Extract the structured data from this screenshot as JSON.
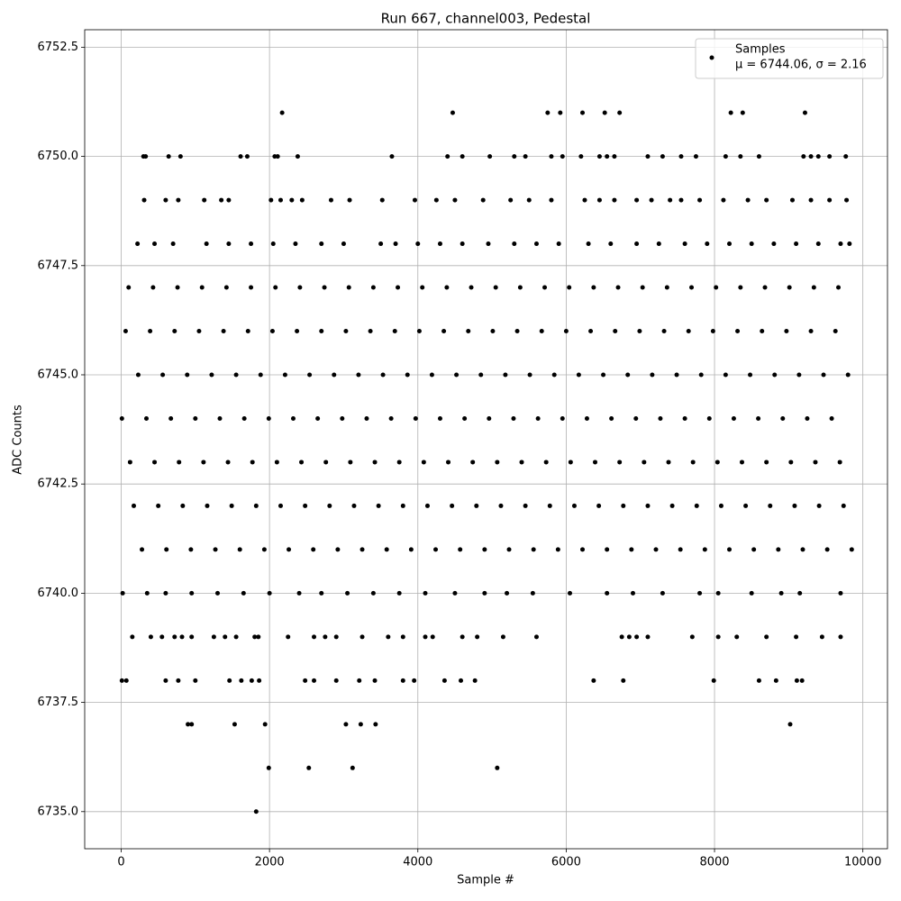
{
  "chart_data": {
    "type": "scatter",
    "title": "Run 667, channel003, Pedestal",
    "xlabel": "Sample #",
    "ylabel": "ADC Counts",
    "xlim": [
      -492,
      10332
    ],
    "ylim": [
      6734.15,
      6752.9
    ],
    "xticks": [
      0,
      2000,
      4000,
      6000,
      8000,
      10000
    ],
    "yticks": [
      {
        "value": 6735,
        "label": "6735.0"
      },
      6737.5,
      {
        "value": 6740,
        "label": "6740.0"
      },
      6742.5,
      {
        "value": 6745,
        "label": "6745.0"
      },
      6747.5,
      {
        "value": 6750,
        "label": "6750.0"
      },
      6752.5
    ],
    "grid": true,
    "legend": "upper right",
    "legend_note": "μ = 6744.06, σ = 2.16",
    "x": [
      10,
      340,
      670,
      1000,
      1330,
      1660,
      1990,
      2320,
      2650,
      2980,
      3310,
      3640,
      3970,
      4300,
      4630,
      4960,
      5290,
      5620,
      5950,
      6280,
      6610,
      6940,
      7270,
      7600,
      7930,
      8260,
      8590,
      8920,
      9250,
      9580,
      120,
      450,
      780,
      1110,
      1440,
      1770,
      2100,
      2430,
      2760,
      3090,
      3420,
      3750,
      4080,
      4410,
      4740,
      5070,
      5400,
      5730,
      6060,
      6390,
      6720,
      7050,
      7380,
      7710,
      8040,
      8370,
      8700,
      9030,
      9360,
      9690,
      230,
      560,
      890,
      1220,
      1550,
      1880,
      2210,
      2540,
      2870,
      3200,
      3530,
      3860,
      4190,
      4520,
      4850,
      5180,
      5510,
      5840,
      6170,
      6500,
      6830,
      7160,
      7490,
      7820,
      8150,
      8480,
      8810,
      9140,
      9470,
      9800,
      60,
      390,
      720,
      1050,
      1380,
      1710,
      2040,
      2370,
      2700,
      3030,
      3360,
      3690,
      4020,
      4350,
      4680,
      5010,
      5340,
      5670,
      6000,
      6330,
      6660,
      6990,
      7320,
      7650,
      7980,
      8310,
      8640,
      8970,
      9300,
      9630,
      170,
      500,
      830,
      1160,
      1490,
      1820,
      2150,
      2480,
      2810,
      3140,
      3470,
      3800,
      4130,
      4460,
      4790,
      5120,
      5450,
      5780,
      6110,
      6440,
      6770,
      7100,
      7430,
      7760,
      8090,
      8420,
      8750,
      9080,
      9410,
      9740,
      280,
      610,
      940,
      1270,
      1600,
      1930,
      2260,
      2590,
      2920,
      3250,
      3580,
      3910,
      4240,
      4570,
      4900,
      5230,
      5560,
      5890,
      6220,
      6550,
      6880,
      7210,
      7540,
      7870,
      8200,
      8530,
      8860,
      9190,
      9520,
      9850,
      100,
      430,
      760,
      1090,
      1420,
      1750,
      2080,
      2410,
      2740,
      3070,
      3400,
      3730,
      4060,
      4390,
      4720,
      5050,
      5380,
      5710,
      6040,
      6370,
      6700,
      7030,
      7360,
      7690,
      8020,
      8350,
      8680,
      9010,
      9340,
      9670,
      20,
      350,
      600,
      950,
      1300,
      1650,
      2000,
      2400,
      2700,
      3050,
      3400,
      3750,
      4100,
      4500,
      4900,
      5200,
      5550,
      6050,
      6550,
      6900,
      7300,
      7800,
      8050,
      8500,
      8900,
      9150,
      9700,
      220,
      450,
      700,
      1150,
      1450,
      1750,
      2050,
      2350,
      2700,
      3000,
      3500,
      3700,
      4000,
      4300,
      4600,
      4950,
      5300,
      5600,
      5900,
      6300,
      6600,
      6950,
      7250,
      7600,
      7900,
      8200,
      8500,
      8800,
      9100,
      9400,
      9700,
      9820,
      310,
      600,
      770,
      1120,
      1350,
      1450,
      2020,
      2150,
      2300,
      2440,
      2830,
      3080,
      3520,
      3960,
      4250,
      4500,
      4880,
      5250,
      5500,
      5800,
      6250,
      6450,
      6650,
      6950,
      7150,
      7400,
      7550,
      7800,
      8120,
      8450,
      8700,
      9050,
      9300,
      9550,
      9780,
      300,
      330,
      640,
      800,
      1610,
      1700,
      2070,
      2110,
      2380,
      3650,
      4400,
      4600,
      4970,
      5300,
      5450,
      5800,
      5950,
      6200,
      6450,
      6550,
      6650,
      7100,
      7300,
      7550,
      7750,
      8150,
      8350,
      8600,
      9200,
      9300,
      9400,
      9550,
      9770,
      2170,
      4470,
      5750,
      5920,
      6220,
      6520,
      6720,
      8220,
      8380,
      9220,
      150,
      400,
      550,
      720,
      820,
      950,
      1250,
      1400,
      1550,
      1800,
      1850,
      2250,
      2600,
      2750,
      2900,
      3250,
      3600,
      3800,
      4100,
      4200,
      4600,
      4800,
      5150,
      5600,
      6750,
      6850,
      6950,
      7100,
      7700,
      8050,
      8300,
      8700,
      9100,
      9450,
      9700,
      10,
      70,
      600,
      770,
      1000,
      1460,
      1620,
      1760,
      1860,
      2480,
      2600,
      2900,
      3210,
      3420,
      3800,
      3950,
      4360,
      4580,
      4770,
      6370,
      6770,
      7990,
      8600,
      8830,
      9110,
      9180,
      900,
      950,
      1530,
      1940,
      3030,
      3230,
      3430,
      9020,
      1990,
      2530,
      3120,
      5070,
      1820
    ],
    "series": [
      {
        "name": "Samples",
        "color": "#000000",
        "values": [
          6744,
          6744,
          6744,
          6744,
          6744,
          6744,
          6744,
          6744,
          6744,
          6744,
          6744,
          6744,
          6744,
          6744,
          6744,
          6744,
          6744,
          6744,
          6744,
          6744,
          6744,
          6744,
          6744,
          6744,
          6744,
          6744,
          6744,
          6744,
          6744,
          6744,
          6743,
          6743,
          6743,
          6743,
          6743,
          6743,
          6743,
          6743,
          6743,
          6743,
          6743,
          6743,
          6743,
          6743,
          6743,
          6743,
          6743,
          6743,
          6743,
          6743,
          6743,
          6743,
          6743,
          6743,
          6743,
          6743,
          6743,
          6743,
          6743,
          6743,
          6745,
          6745,
          6745,
          6745,
          6745,
          6745,
          6745,
          6745,
          6745,
          6745,
          6745,
          6745,
          6745,
          6745,
          6745,
          6745,
          6745,
          6745,
          6745,
          6745,
          6745,
          6745,
          6745,
          6745,
          6745,
          6745,
          6745,
          6745,
          6745,
          6745,
          6746,
          6746,
          6746,
          6746,
          6746,
          6746,
          6746,
          6746,
          6746,
          6746,
          6746,
          6746,
          6746,
          6746,
          6746,
          6746,
          6746,
          6746,
          6746,
          6746,
          6746,
          6746,
          6746,
          6746,
          6746,
          6746,
          6746,
          6746,
          6746,
          6746,
          6742,
          6742,
          6742,
          6742,
          6742,
          6742,
          6742,
          6742,
          6742,
          6742,
          6742,
          6742,
          6742,
          6742,
          6742,
          6742,
          6742,
          6742,
          6742,
          6742,
          6742,
          6742,
          6742,
          6742,
          6742,
          6742,
          6742,
          6742,
          6742,
          6742,
          6741,
          6741,
          6741,
          6741,
          6741,
          6741,
          6741,
          6741,
          6741,
          6741,
          6741,
          6741,
          6741,
          6741,
          6741,
          6741,
          6741,
          6741,
          6741,
          6741,
          6741,
          6741,
          6741,
          6741,
          6741,
          6741,
          6741,
          6741,
          6741,
          6741,
          6747,
          6747,
          6747,
          6747,
          6747,
          6747,
          6747,
          6747,
          6747,
          6747,
          6747,
          6747,
          6747,
          6747,
          6747,
          6747,
          6747,
          6747,
          6747,
          6747,
          6747,
          6747,
          6747,
          6747,
          6747,
          6747,
          6747,
          6747,
          6747,
          6747,
          6740,
          6740,
          6740,
          6740,
          6740,
          6740,
          6740,
          6740,
          6740,
          6740,
          6740,
          6740,
          6740,
          6740,
          6740,
          6740,
          6740,
          6740,
          6740,
          6740,
          6740,
          6740,
          6740,
          6740,
          6740,
          6740,
          6740,
          6748,
          6748,
          6748,
          6748,
          6748,
          6748,
          6748,
          6748,
          6748,
          6748,
          6748,
          6748,
          6748,
          6748,
          6748,
          6748,
          6748,
          6748,
          6748,
          6748,
          6748,
          6748,
          6748,
          6748,
          6748,
          6748,
          6748,
          6748,
          6748,
          6748,
          6748,
          6748,
          6749,
          6749,
          6749,
          6749,
          6749,
          6749,
          6749,
          6749,
          6749,
          6749,
          6749,
          6749,
          6749,
          6749,
          6749,
          6749,
          6749,
          6749,
          6749,
          6749,
          6749,
          6749,
          6749,
          6749,
          6749,
          6749,
          6749,
          6749,
          6749,
          6749,
          6749,
          6749,
          6749,
          6749,
          6749,
          6750,
          6750,
          6750,
          6750,
          6750,
          6750,
          6750,
          6750,
          6750,
          6750,
          6750,
          6750,
          6750,
          6750,
          6750,
          6750,
          6750,
          6750,
          6750,
          6750,
          6750,
          6750,
          6750,
          6750,
          6750,
          6750,
          6750,
          6750,
          6750,
          6750,
          6750,
          6750,
          6750,
          6751,
          6751,
          6751,
          6751,
          6751,
          6751,
          6751,
          6751,
          6751,
          6751,
          6739,
          6739,
          6739,
          6739,
          6739,
          6739,
          6739,
          6739,
          6739,
          6739,
          6739,
          6739,
          6739,
          6739,
          6739,
          6739,
          6739,
          6739,
          6739,
          6739,
          6739,
          6739,
          6739,
          6739,
          6739,
          6739,
          6739,
          6739,
          6739,
          6739,
          6739,
          6739,
          6739,
          6739,
          6739,
          6738,
          6738,
          6738,
          6738,
          6738,
          6738,
          6738,
          6738,
          6738,
          6738,
          6738,
          6738,
          6738,
          6738,
          6738,
          6738,
          6738,
          6738,
          6738,
          6738,
          6738,
          6738,
          6738,
          6738,
          6738,
          6738,
          6737,
          6737,
          6737,
          6737,
          6737,
          6737,
          6737,
          6737,
          6736,
          6736,
          6736,
          6736,
          6735
        ]
      }
    ]
  }
}
